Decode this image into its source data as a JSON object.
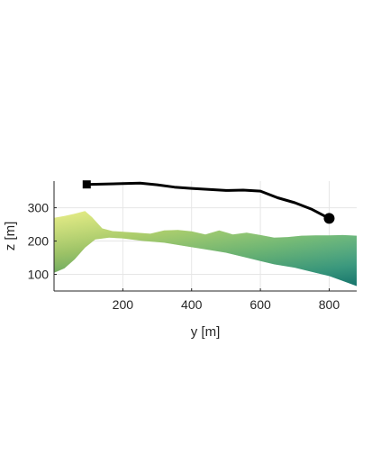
{
  "chart_data": {
    "type": "line",
    "title": "",
    "xlabel": "y [m]",
    "ylabel": "z [m]",
    "xlim": [
      0,
      880
    ],
    "ylim": [
      50,
      380
    ],
    "xticks": [
      200,
      400,
      600,
      800
    ],
    "yticks": [
      100,
      200,
      300
    ],
    "grid": true,
    "series": [
      {
        "marker_start": "square",
        "marker_end": "circle",
        "color": "#000000",
        "x": [
          95,
          150,
          250,
          300,
          350,
          400,
          500,
          550,
          600,
          650,
          700,
          750,
          800
        ],
        "y": [
          370,
          371,
          374,
          369,
          362,
          358,
          352,
          353,
          350,
          330,
          315,
          295,
          268
        ]
      }
    ],
    "terrain": {
      "description_colors": [
        "#e2ea6e",
        "#a4c94e",
        "#5cb366",
        "#2f9b83",
        "#1a7f7b"
      ],
      "top_x": [
        0,
        30,
        60,
        90,
        110,
        140,
        170,
        200,
        240,
        280,
        320,
        360,
        400,
        440,
        480,
        520,
        560,
        600,
        640,
        680,
        720,
        760,
        800,
        840,
        880
      ],
      "top_z": [
        270,
        275,
        282,
        290,
        272,
        238,
        230,
        228,
        225,
        222,
        232,
        233,
        229,
        220,
        232,
        220,
        225,
        218,
        210,
        212,
        216,
        217,
        217,
        218,
        216
      ],
      "bottom_x": [
        0,
        30,
        60,
        90,
        120,
        160,
        200,
        260,
        320,
        380,
        440,
        500,
        560,
        600,
        640,
        700,
        760,
        800,
        840,
        880
      ],
      "bottom_z": [
        105,
        118,
        145,
        180,
        205,
        210,
        208,
        200,
        195,
        185,
        175,
        165,
        150,
        140,
        130,
        120,
        105,
        95,
        80,
        65
      ]
    }
  }
}
